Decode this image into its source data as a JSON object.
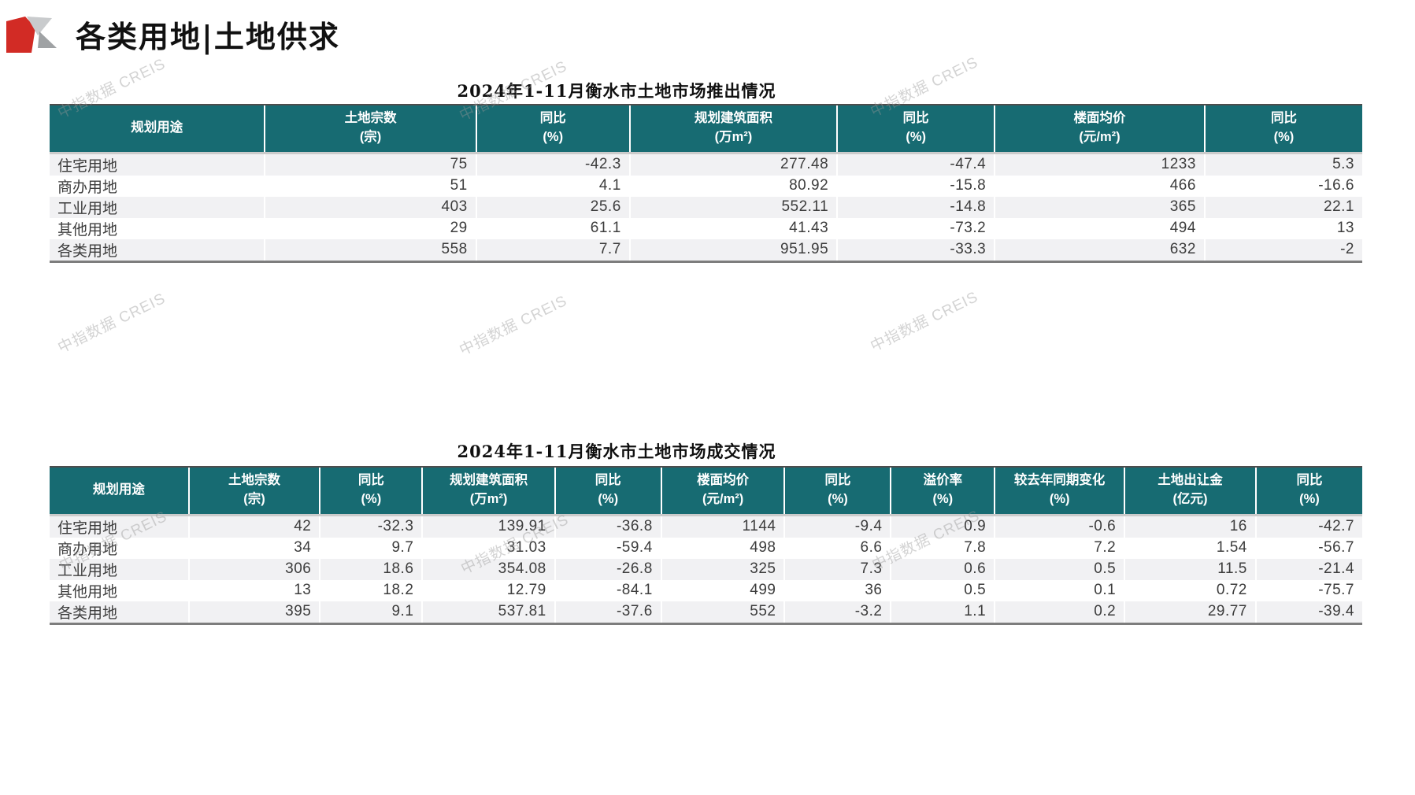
{
  "page": {
    "heading": "各类用地|土地供求",
    "watermark_text": "中指数据 CREIS",
    "colors": {
      "header_bg": "#176B72",
      "header_text": "#FFFFFF",
      "row_stripe": "#F1F1F3",
      "body_text": "#3C3C3C",
      "logo_red": "#D22B25",
      "logo_gray_light": "#C9CBCD",
      "logo_gray_dark": "#9FA2A4",
      "watermark": "#C6C6C6"
    }
  },
  "tables": [
    {
      "title": "2024年1-11月衡水市土地市场推出情况",
      "columns": [
        {
          "label": "规划用途",
          "unit": ""
        },
        {
          "label": "土地宗数",
          "unit": "(宗)"
        },
        {
          "label": "同比",
          "unit": "(%)"
        },
        {
          "label": "规划建筑面积",
          "unit": "(万m²)"
        },
        {
          "label": "同比",
          "unit": "(%)"
        },
        {
          "label": "楼面均价",
          "unit": "(元/m²)"
        },
        {
          "label": "同比",
          "unit": "(%)"
        }
      ],
      "col_widths_pct": [
        16.4,
        16.1,
        11.7,
        15.8,
        12.0,
        16.0,
        12.0
      ],
      "rows": [
        [
          "住宅用地",
          "75",
          "-42.3",
          "277.48",
          "-47.4",
          "1233",
          "5.3"
        ],
        [
          "商办用地",
          "51",
          "4.1",
          "80.92",
          "-15.8",
          "466",
          "-16.6"
        ],
        [
          "工业用地",
          "403",
          "25.6",
          "552.11",
          "-14.8",
          "365",
          "22.1"
        ],
        [
          "其他用地",
          "29",
          "61.1",
          "41.43",
          "-73.2",
          "494",
          "13"
        ],
        [
          "各类用地",
          "558",
          "7.7",
          "951.95",
          "-33.3",
          "632",
          "-2"
        ]
      ]
    },
    {
      "title": "2024年1-11月衡水市土地市场成交情况",
      "columns": [
        {
          "label": "规划用途",
          "unit": ""
        },
        {
          "label": "土地宗数",
          "unit": "(宗)"
        },
        {
          "label": "同比",
          "unit": "(%)"
        },
        {
          "label": "规划建筑面积",
          "unit": "(万m²)"
        },
        {
          "label": "同比",
          "unit": "(%)"
        },
        {
          "label": "楼面均价",
          "unit": "(元/m²)"
        },
        {
          "label": "同比",
          "unit": "(%)"
        },
        {
          "label": "溢价率",
          "unit": "(%)"
        },
        {
          "label": "较去年同期变化",
          "unit": "(%)"
        },
        {
          "label": "土地出让金",
          "unit": "(亿元)"
        },
        {
          "label": "同比",
          "unit": "(%)"
        }
      ],
      "col_widths_pct": [
        10.6,
        10.0,
        7.8,
        10.1,
        8.1,
        9.4,
        8.1,
        7.9,
        9.9,
        10.0,
        8.1
      ],
      "rows": [
        [
          "住宅用地",
          "42",
          "-32.3",
          "139.91",
          "-36.8",
          "1144",
          "-9.4",
          "0.9",
          "-0.6",
          "16",
          "-42.7"
        ],
        [
          "商办用地",
          "34",
          "9.7",
          "31.03",
          "-59.4",
          "498",
          "6.6",
          "7.8",
          "7.2",
          "1.54",
          "-56.7"
        ],
        [
          "工业用地",
          "306",
          "18.6",
          "354.08",
          "-26.8",
          "325",
          "7.3",
          "0.6",
          "0.5",
          "11.5",
          "-21.4"
        ],
        [
          "其他用地",
          "13",
          "18.2",
          "12.79",
          "-84.1",
          "499",
          "36",
          "0.5",
          "0.1",
          "0.72",
          "-75.7"
        ],
        [
          "各类用地",
          "395",
          "9.1",
          "537.81",
          "-37.6",
          "552",
          "-3.2",
          "1.1",
          "0.2",
          "29.77",
          "-39.4"
        ]
      ]
    }
  ]
}
